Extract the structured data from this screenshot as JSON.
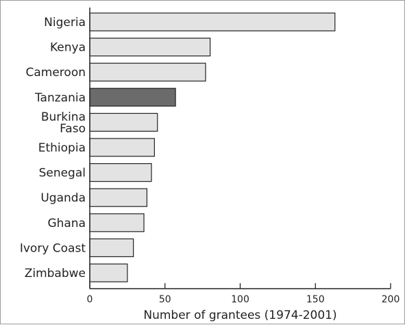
{
  "chart_data": {
    "type": "bar",
    "orientation": "horizontal",
    "categories": [
      "Nigeria",
      "Kenya",
      "Cameroon",
      "Tanzania",
      "Burkina Faso",
      "Ethiopia",
      "Senegal",
      "Uganda",
      "Ghana",
      "Ivory Coast",
      "Zimbabwe"
    ],
    "category_lines": [
      [
        "Nigeria"
      ],
      [
        "Kenya"
      ],
      [
        "Cameroon"
      ],
      [
        "Tanzania"
      ],
      [
        "Burkina",
        "Faso"
      ],
      [
        "Ethiopia"
      ],
      [
        "Senegal"
      ],
      [
        "Uganda"
      ],
      [
        "Ghana"
      ],
      [
        "Ivory Coast"
      ],
      [
        "Zimbabwe"
      ]
    ],
    "values": [
      163,
      80,
      77,
      57,
      45,
      43,
      41,
      38,
      36,
      29,
      25
    ],
    "highlight_category": "Tanzania",
    "xlabel": "Number of grantees (1974-2001)",
    "ylabel": "",
    "xlim": [
      0,
      200
    ],
    "xticks": [
      0,
      50,
      100,
      150,
      200
    ],
    "grid": false,
    "colors": {
      "bar": "#e3e3e3",
      "highlight": "#6b6b6b",
      "bar_stroke": "#222222",
      "axis": "#222222"
    }
  }
}
